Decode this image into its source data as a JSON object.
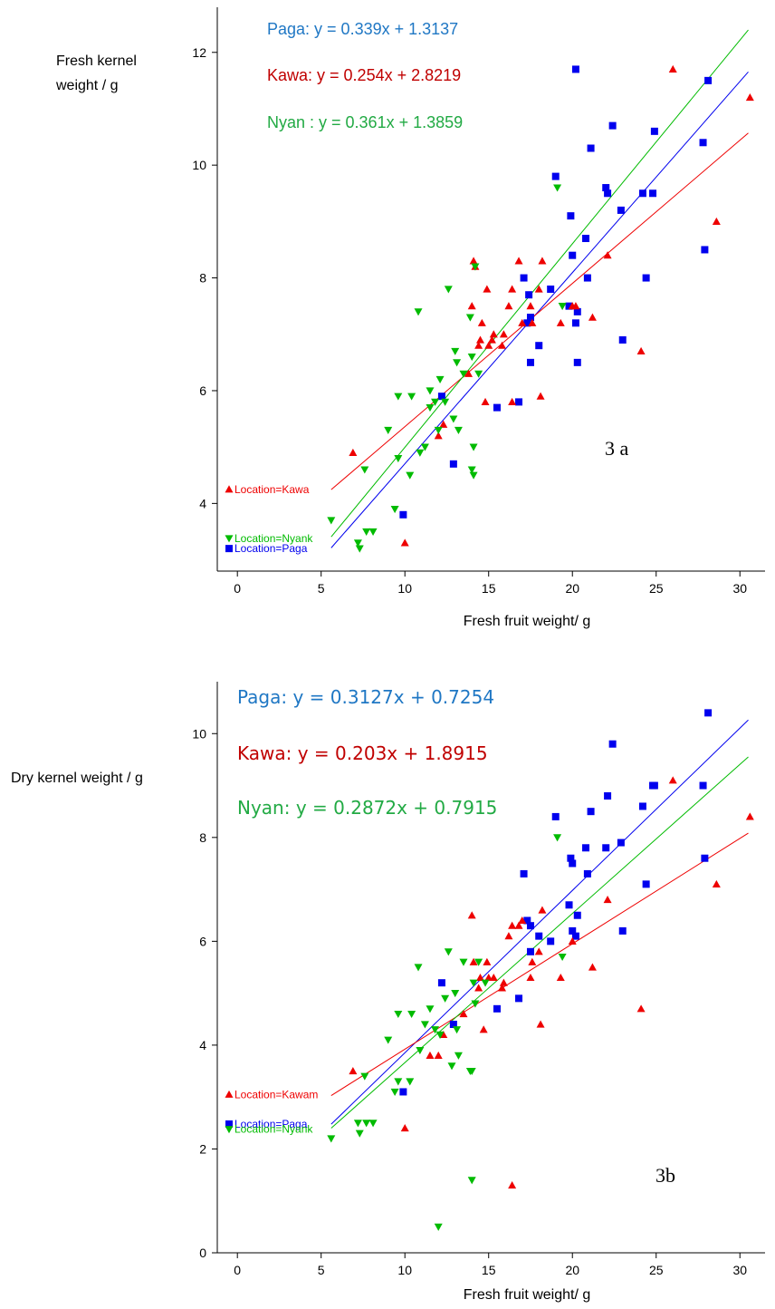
{
  "chart_data": [
    {
      "type": "scatter",
      "id": "3a",
      "panel_label": "3 a",
      "title": "",
      "xlabel": "Fresh fruit weight/ g",
      "ylabel_lines": [
        "Fresh kernel",
        "weight / g"
      ],
      "xlim": [
        -1.2,
        31.5
      ],
      "ylim": [
        2.8,
        12.8
      ],
      "xticks": [
        0,
        5,
        10,
        15,
        20,
        25,
        30
      ],
      "yticks": [
        4,
        6,
        8,
        10,
        12
      ],
      "grid": false,
      "legend_position": "top-left",
      "equations": [
        {
          "text": "Paga:  y = 0.339x + 1.3137",
          "color": "#1f77c4"
        },
        {
          "text": "Kawa: y = 0.254x + 2.8219",
          "color": "#c00000"
        },
        {
          "text": "Nyan : y = 0.361x + 1.3859",
          "color": "#22aa44"
        }
      ],
      "location_labels": [
        {
          "text": "Location=Kawa",
          "series": "Kawa",
          "y": 4.25
        },
        {
          "text": "Location=Nyank",
          "series": "Nyank",
          "y": 3.38
        },
        {
          "text": "Location=Paga",
          "series": "Paga",
          "y": 3.2
        }
      ],
      "series": [
        {
          "name": "Paga",
          "color": "#0000ee",
          "marker": "square",
          "fit": {
            "slope": 0.339,
            "intercept": 1.3137,
            "x_range": [
              5.6,
              30.5
            ]
          },
          "points": [
            [
              9.9,
              3.8
            ],
            [
              12.2,
              5.9
            ],
            [
              12.9,
              4.7
            ],
            [
              15.5,
              5.7
            ],
            [
              16.8,
              5.8
            ],
            [
              17.5,
              6.5
            ],
            [
              18.0,
              6.8
            ],
            [
              17.3,
              7.2
            ],
            [
              17.5,
              7.3
            ],
            [
              17.4,
              7.7
            ],
            [
              17.1,
              8.0
            ],
            [
              18.7,
              7.8
            ],
            [
              19.8,
              7.5
            ],
            [
              20.2,
              7.2
            ],
            [
              20.3,
              7.4
            ],
            [
              20.3,
              6.5
            ],
            [
              20.9,
              8.0
            ],
            [
              20.0,
              8.4
            ],
            [
              20.8,
              8.7
            ],
            [
              19.9,
              9.1
            ],
            [
              19.0,
              9.8
            ],
            [
              21.1,
              10.3
            ],
            [
              22.0,
              9.6
            ],
            [
              22.1,
              9.5
            ],
            [
              22.4,
              10.7
            ],
            [
              22.9,
              9.2
            ],
            [
              23.0,
              6.9
            ],
            [
              24.2,
              9.5
            ],
            [
              24.4,
              8.0
            ],
            [
              24.8,
              9.5
            ],
            [
              24.9,
              10.6
            ],
            [
              27.8,
              10.4
            ],
            [
              27.9,
              8.5
            ],
            [
              28.1,
              11.5
            ],
            [
              20.2,
              11.7
            ]
          ]
        },
        {
          "name": "Kawa",
          "color": "#ee0000",
          "marker": "triangle-up",
          "fit": {
            "slope": 0.254,
            "intercept": 2.8219,
            "x_range": [
              5.6,
              30.5
            ]
          },
          "points": [
            [
              6.9,
              4.9
            ],
            [
              10.0,
              3.3
            ],
            [
              12.0,
              5.2
            ],
            [
              12.3,
              5.4
            ],
            [
              13.8,
              6.3
            ],
            [
              14.0,
              7.5
            ],
            [
              14.1,
              8.3
            ],
            [
              14.2,
              8.2
            ],
            [
              14.4,
              6.8
            ],
            [
              14.5,
              6.9
            ],
            [
              14.6,
              7.2
            ],
            [
              14.8,
              5.8
            ],
            [
              14.9,
              7.8
            ],
            [
              15.0,
              6.8
            ],
            [
              15.2,
              6.9
            ],
            [
              15.3,
              7.0
            ],
            [
              15.8,
              6.8
            ],
            [
              15.9,
              7.0
            ],
            [
              16.2,
              7.5
            ],
            [
              16.4,
              7.8
            ],
            [
              16.4,
              5.8
            ],
            [
              16.8,
              8.3
            ],
            [
              17.0,
              7.2
            ],
            [
              17.5,
              7.5
            ],
            [
              17.6,
              7.2
            ],
            [
              18.0,
              7.8
            ],
            [
              18.1,
              5.9
            ],
            [
              18.2,
              8.3
            ],
            [
              19.3,
              7.2
            ],
            [
              20.0,
              7.5
            ],
            [
              20.2,
              7.5
            ],
            [
              21.2,
              7.3
            ],
            [
              22.1,
              8.4
            ],
            [
              24.1,
              6.7
            ],
            [
              26.0,
              11.7
            ],
            [
              28.6,
              9.0
            ],
            [
              30.6,
              11.2
            ]
          ]
        },
        {
          "name": "Nyank",
          "color": "#00bb00",
          "marker": "triangle-down",
          "fit": {
            "slope": 0.361,
            "intercept": 1.3859,
            "x_range": [
              5.6,
              30.5
            ]
          },
          "points": [
            [
              5.6,
              3.7
            ],
            [
              7.2,
              3.3
            ],
            [
              7.3,
              3.2
            ],
            [
              7.6,
              4.6
            ],
            [
              7.7,
              3.5
            ],
            [
              8.1,
              3.5
            ],
            [
              9.0,
              5.3
            ],
            [
              9.4,
              3.9
            ],
            [
              9.6,
              5.9
            ],
            [
              9.6,
              4.8
            ],
            [
              10.3,
              4.5
            ],
            [
              10.4,
              5.9
            ],
            [
              10.8,
              7.4
            ],
            [
              10.9,
              4.9
            ],
            [
              11.2,
              5.0
            ],
            [
              11.5,
              6.0
            ],
            [
              11.5,
              5.7
            ],
            [
              11.8,
              5.8
            ],
            [
              12.0,
              5.3
            ],
            [
              12.1,
              6.2
            ],
            [
              12.4,
              5.8
            ],
            [
              12.6,
              7.8
            ],
            [
              12.9,
              5.5
            ],
            [
              13.0,
              6.7
            ],
            [
              13.1,
              6.5
            ],
            [
              13.2,
              5.3
            ],
            [
              13.5,
              6.3
            ],
            [
              13.9,
              7.3
            ],
            [
              14.0,
              6.6
            ],
            [
              14.0,
              4.6
            ],
            [
              14.1,
              4.5
            ],
            [
              14.1,
              5.0
            ],
            [
              14.4,
              6.3
            ],
            [
              14.2,
              8.2
            ],
            [
              19.1,
              9.6
            ],
            [
              19.4,
              7.5
            ]
          ]
        }
      ]
    },
    {
      "type": "scatter",
      "id": "3b",
      "panel_label": "3b",
      "title": "",
      "xlabel": "Fresh fruit weight/ g",
      "ylabel_lines": [
        "Dry kernel weight / g"
      ],
      "xlim": [
        -1.2,
        31.5
      ],
      "ylim": [
        0,
        11
      ],
      "xticks": [
        0,
        5,
        10,
        15,
        20,
        25,
        30
      ],
      "yticks": [
        0,
        2,
        4,
        6,
        8,
        10
      ],
      "grid": false,
      "legend_position": "top-left",
      "equations": [
        {
          "text": "Paga: y = 0.3127x + 0.7254",
          "color": "#1f77c4"
        },
        {
          "text": "Kawa: y = 0.203x + 1.8915",
          "color": "#c00000"
        },
        {
          "text": "Nyan: y = 0.2872x + 0.7915",
          "color": "#22aa44"
        }
      ],
      "location_labels": [
        {
          "text": "Location=Kawam",
          "series": "Kawa",
          "y": 3.05
        },
        {
          "text": "Location=Paga",
          "series": "Paga",
          "y": 2.48
        },
        {
          "text": "Location=Nyank",
          "series": "Nyank",
          "y": 2.38
        }
      ],
      "series": [
        {
          "name": "Paga",
          "color": "#0000ee",
          "marker": "square",
          "fit": {
            "slope": 0.3127,
            "intercept": 0.7254,
            "x_range": [
              5.6,
              30.5
            ]
          },
          "points": [
            [
              9.9,
              3.1
            ],
            [
              12.2,
              5.2
            ],
            [
              12.9,
              4.4
            ],
            [
              15.5,
              4.7
            ],
            [
              16.8,
              4.9
            ],
            [
              17.1,
              7.3
            ],
            [
              17.3,
              6.4
            ],
            [
              17.5,
              6.3
            ],
            [
              17.5,
              5.8
            ],
            [
              18.0,
              6.1
            ],
            [
              18.7,
              6.0
            ],
            [
              19.8,
              6.7
            ],
            [
              19.9,
              7.6
            ],
            [
              20.0,
              7.5
            ],
            [
              20.0,
              6.2
            ],
            [
              20.2,
              6.1
            ],
            [
              20.3,
              6.5
            ],
            [
              20.8,
              7.8
            ],
            [
              20.9,
              7.3
            ],
            [
              21.1,
              8.5
            ],
            [
              22.0,
              7.8
            ],
            [
              22.1,
              8.8
            ],
            [
              22.4,
              9.8
            ],
            [
              22.9,
              7.9
            ],
            [
              23.0,
              6.2
            ],
            [
              24.2,
              8.6
            ],
            [
              24.4,
              7.1
            ],
            [
              24.8,
              9.0
            ],
            [
              24.9,
              9.0
            ],
            [
              27.8,
              9.0
            ],
            [
              27.9,
              7.6
            ],
            [
              28.1,
              10.4
            ],
            [
              19.0,
              8.4
            ]
          ]
        },
        {
          "name": "Kawa",
          "color": "#ee0000",
          "marker": "triangle-up",
          "fit": {
            "slope": 0.203,
            "intercept": 1.8915,
            "x_range": [
              5.6,
              30.5
            ]
          },
          "points": [
            [
              6.9,
              3.5
            ],
            [
              10.0,
              2.4
            ],
            [
              11.5,
              3.8
            ],
            [
              12.0,
              3.8
            ],
            [
              12.3,
              4.2
            ],
            [
              13.5,
              4.6
            ],
            [
              14.0,
              6.5
            ],
            [
              14.1,
              5.6
            ],
            [
              14.4,
              5.1
            ],
            [
              14.5,
              5.3
            ],
            [
              14.7,
              4.3
            ],
            [
              14.9,
              5.6
            ],
            [
              15.0,
              5.3
            ],
            [
              15.3,
              5.3
            ],
            [
              15.8,
              5.1
            ],
            [
              15.9,
              5.2
            ],
            [
              16.2,
              6.1
            ],
            [
              16.4,
              6.3
            ],
            [
              16.4,
              1.3
            ],
            [
              16.8,
              6.3
            ],
            [
              17.0,
              6.4
            ],
            [
              17.5,
              5.3
            ],
            [
              17.6,
              5.6
            ],
            [
              18.0,
              5.8
            ],
            [
              18.1,
              4.4
            ],
            [
              18.2,
              6.6
            ],
            [
              19.3,
              5.3
            ],
            [
              20.0,
              6.0
            ],
            [
              21.2,
              5.5
            ],
            [
              22.1,
              6.8
            ],
            [
              24.1,
              4.7
            ],
            [
              26.0,
              9.1
            ],
            [
              28.6,
              7.1
            ],
            [
              30.6,
              8.4
            ]
          ]
        },
        {
          "name": "Nyank",
          "color": "#00bb00",
          "marker": "triangle-down",
          "fit": {
            "slope": 0.2872,
            "intercept": 0.7915,
            "x_range": [
              5.6,
              30.5
            ]
          },
          "points": [
            [
              5.6,
              2.2
            ],
            [
              7.2,
              2.5
            ],
            [
              7.3,
              2.3
            ],
            [
              7.6,
              3.4
            ],
            [
              7.7,
              2.5
            ],
            [
              8.1,
              2.5
            ],
            [
              9.0,
              4.1
            ],
            [
              9.4,
              3.1
            ],
            [
              9.6,
              4.6
            ],
            [
              9.6,
              3.3
            ],
            [
              10.3,
              3.3
            ],
            [
              10.4,
              4.6
            ],
            [
              10.8,
              5.5
            ],
            [
              10.9,
              3.9
            ],
            [
              11.2,
              4.4
            ],
            [
              11.5,
              4.7
            ],
            [
              11.8,
              4.3
            ],
            [
              12.0,
              0.5
            ],
            [
              12.1,
              4.2
            ],
            [
              12.4,
              4.9
            ],
            [
              12.6,
              5.8
            ],
            [
              12.8,
              3.6
            ],
            [
              13.0,
              5.0
            ],
            [
              13.1,
              4.3
            ],
            [
              13.2,
              3.8
            ],
            [
              13.5,
              5.6
            ],
            [
              13.9,
              3.5
            ],
            [
              14.0,
              3.5
            ],
            [
              14.0,
              1.4
            ],
            [
              14.1,
              5.2
            ],
            [
              14.2,
              4.8
            ],
            [
              14.4,
              5.6
            ],
            [
              14.8,
              5.2
            ],
            [
              19.1,
              8.0
            ],
            [
              19.4,
              5.7
            ]
          ]
        }
      ]
    }
  ]
}
